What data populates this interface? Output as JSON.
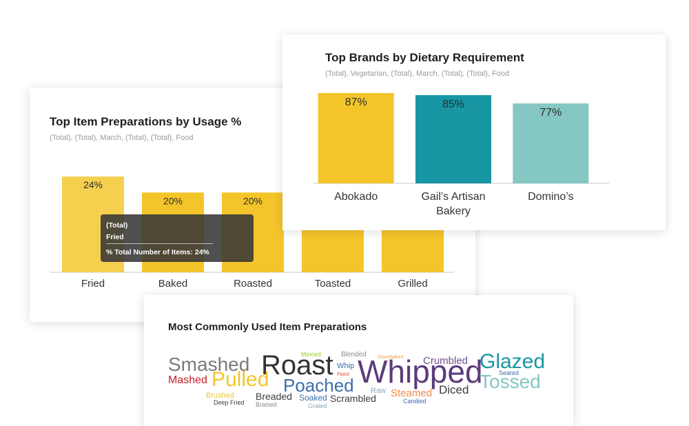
{
  "chart_data": [
    {
      "type": "bar",
      "title": "Top Item Preparations by Usage %",
      "subtitle": "(Total), (Total), March, (Total), (Total), Food",
      "categories": [
        "Fried",
        "Baked",
        "Roasted",
        "Toasted",
        "Grilled"
      ],
      "values": [
        24,
        20,
        20,
        19,
        19
      ],
      "data_labels": [
        "24%",
        "20%",
        "20%",
        "",
        ""
      ],
      "unit": "%",
      "ylim": [
        0,
        28
      ],
      "grid": false,
      "colors": [
        "#f5cf4e",
        "#f4c52a",
        "#f4c52a",
        "#f4c52a",
        "#f4c52a"
      ]
    },
    {
      "type": "bar",
      "title": "Top Brands by Dietary Requirement",
      "subtitle": "(Total), Vegetarian, (Total), March, (Total), (Total), Food",
      "categories": [
        "Abokado",
        "Gail’s Artisan Bakery",
        "Domino’s"
      ],
      "category_lines": [
        [
          "Abokado"
        ],
        [
          "Gail’s Artisan",
          "Bakery"
        ],
        [
          "Domino’s"
        ]
      ],
      "values": [
        87,
        85,
        77
      ],
      "data_labels": [
        "87%",
        "85%",
        "77%"
      ],
      "unit": "%",
      "ylim": [
        0,
        87
      ],
      "grid": false,
      "colors": [
        "#f4c52a",
        "#1896a4",
        "#84c7c3"
      ]
    }
  ],
  "tooltip": {
    "line1": "(Total)",
    "line2": "Fried",
    "metric": "% Total Number of Items: 24%"
  },
  "wordcloud": {
    "title": "Most Commonly Used Item Preparations",
    "words": [
      {
        "text": "Smashed",
        "color": "#7a7a7a"
      },
      {
        "text": "Roast",
        "color": "#333333"
      },
      {
        "text": "Whipped",
        "color": "#5c3b7a"
      },
      {
        "text": "Glazed",
        "color": "#1896a4"
      },
      {
        "text": "Tossed",
        "color": "#84c7c3"
      },
      {
        "text": "Pulled",
        "color": "#f4c52a"
      },
      {
        "text": "Poached",
        "color": "#3b6da8"
      },
      {
        "text": "Mashed",
        "color": "#c8202a"
      },
      {
        "text": "Crumbled",
        "color": "#6f4f8f"
      },
      {
        "text": "Diced",
        "color": "#3c3c3c"
      },
      {
        "text": "Scrambled",
        "color": "#3c3c3c"
      },
      {
        "text": "Steamed",
        "color": "#ef8a4a"
      },
      {
        "text": "Breaded",
        "color": "#3c3c3c"
      },
      {
        "text": "Soaked",
        "color": "#3b6da8"
      },
      {
        "text": "Raw",
        "color": "#84aac7"
      },
      {
        "text": "Brushed",
        "color": "#e7c83a"
      },
      {
        "text": "Minced",
        "color": "#9acd32"
      },
      {
        "text": "Blended",
        "color": "#8a8a8a"
      },
      {
        "text": "Whip",
        "color": "#3b6da8"
      },
      {
        "text": "Piped",
        "color": "#e0553a"
      },
      {
        "text": "Stonebaked",
        "color": "#f0a050"
      },
      {
        "text": "Seared",
        "color": "#3b6da8"
      },
      {
        "text": "Candied",
        "color": "#3b6da8"
      },
      {
        "text": "Deep Fried",
        "color": "#3c3c3c"
      },
      {
        "text": "Braised",
        "color": "#8a8a8a"
      },
      {
        "text": "Grated",
        "color": "#84aac7"
      }
    ]
  }
}
